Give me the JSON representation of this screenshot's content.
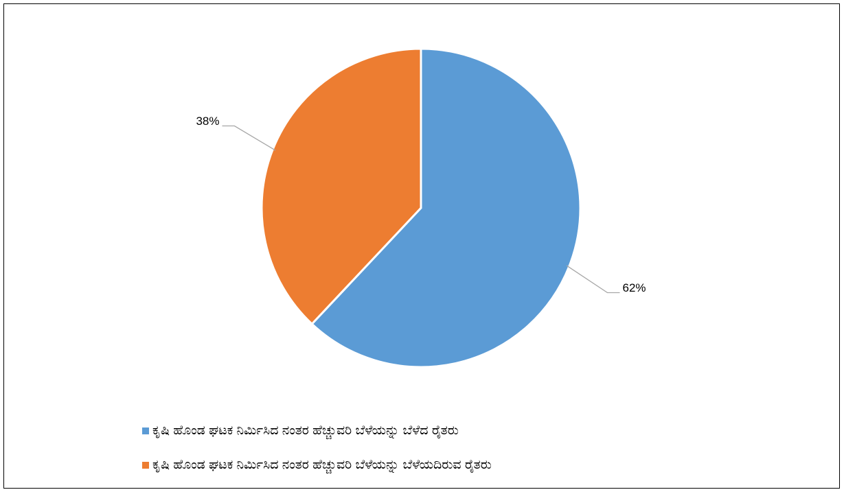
{
  "chart_data": {
    "type": "pie",
    "categories": [
      "ಕೃಷಿ ಹೊಂಡ ಘಟಕ ನಿರ್ಮಿಸಿದ ನಂತರ ಹೆಚ್ಚುವರಿ ಬೆಳೆಯನ್ನು ಬೆಳೆದ ರೈತರು",
      "ಕೃಷಿ ಹೊಂಡ ಘಟಕ ನಿರ್ಮಿಸಿದ ನಂತರ ಹೆಚ್ಚುವರಿ ಬೆಳೆಯನ್ನು ಬೆಳೆಯದಿರುವ ರೈತರು"
    ],
    "values": [
      62,
      38
    ],
    "value_labels": [
      "62%",
      "38%"
    ],
    "colors": [
      "#5b9bd5",
      "#ed7d31"
    ],
    "legend": "bottom"
  }
}
